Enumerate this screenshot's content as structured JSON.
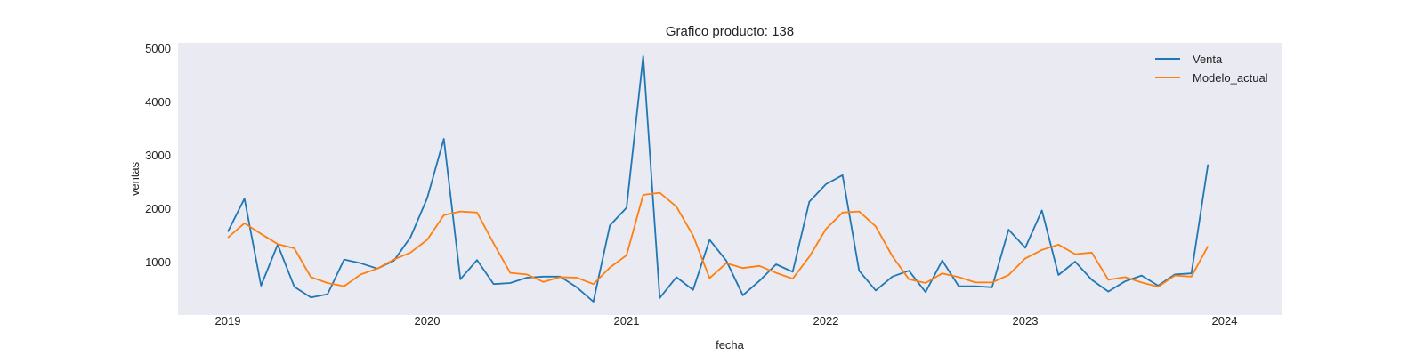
{
  "chart_data": {
    "type": "line",
    "title": "Grafico producto: 138",
    "xlabel": "fecha",
    "ylabel": "ventas",
    "x_start": "2019-01",
    "x_end": "2023-12",
    "x_ticks": [
      "2019",
      "2020",
      "2021",
      "2022",
      "2023",
      "2024"
    ],
    "y_ticks": [
      "1000",
      "2000",
      "3000",
      "4000",
      "5000"
    ],
    "ylim": [
      0,
      5100
    ],
    "grid": false,
    "legend_position": "top-right",
    "series": [
      {
        "name": "Venta",
        "color": "#1f77b4",
        "values": [
          1560,
          2180,
          550,
          1320,
          530,
          330,
          390,
          1040,
          970,
          870,
          1020,
          1460,
          2190,
          3300,
          670,
          1030,
          580,
          600,
          700,
          720,
          720,
          520,
          250,
          1680,
          2010,
          4850,
          320,
          710,
          470,
          1410,
          1020,
          370,
          640,
          950,
          810,
          2120,
          2450,
          2620,
          830,
          460,
          720,
          830,
          430,
          1020,
          540,
          540,
          520,
          1600,
          1260,
          1960,
          750,
          1000,
          660,
          440,
          630,
          740,
          550,
          760,
          780,
          2820
        ]
      },
      {
        "name": "Modelo_actual",
        "color": "#ff7f0e",
        "values": [
          1450,
          1720,
          1520,
          1330,
          1250,
          710,
          600,
          540,
          760,
          870,
          1040,
          1170,
          1410,
          1870,
          1940,
          1920,
          1340,
          790,
          760,
          620,
          710,
          700,
          580,
          890,
          1120,
          2250,
          2290,
          2030,
          1490,
          690,
          970,
          880,
          920,
          790,
          680,
          1090,
          1610,
          1920,
          1940,
          1660,
          1100,
          670,
          600,
          780,
          710,
          610,
          610,
          750,
          1060,
          1220,
          1320,
          1140,
          1170,
          660,
          710,
          610,
          530,
          740,
          720,
          1290
        ]
      }
    ]
  }
}
